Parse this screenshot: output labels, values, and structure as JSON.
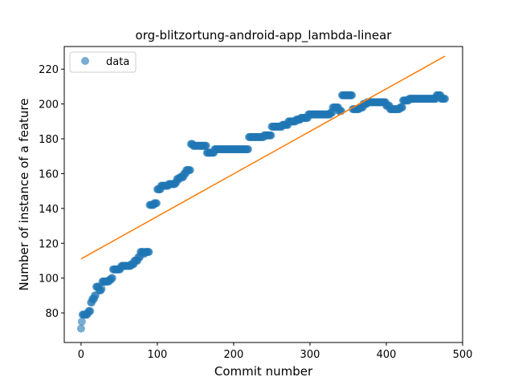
{
  "chart_data": {
    "type": "scatter",
    "title": "org-blitzortung-android-app_lambda-linear",
    "xlabel": "Commit number",
    "ylabel": "Number of instance of a feature",
    "xlim": [
      -22,
      500
    ],
    "ylim": [
      63,
      233
    ],
    "xticks": [
      0,
      100,
      200,
      300,
      400,
      500
    ],
    "yticks": [
      80,
      100,
      120,
      140,
      160,
      180,
      200,
      220
    ],
    "legend": {
      "entries": [
        "data"
      ],
      "placement": "top-left"
    },
    "colors": {
      "data": "#1f77b4",
      "fit": "#ff7f0e"
    },
    "series": [
      {
        "name": "data",
        "kind": "scatter",
        "steps": [
          [
            0,
            71
          ],
          [
            1,
            75
          ],
          [
            2,
            79
          ],
          [
            8,
            79
          ],
          [
            9,
            80
          ],
          [
            10,
            81
          ],
          [
            13,
            86
          ],
          [
            15,
            88
          ],
          [
            18,
            90
          ],
          [
            20,
            95
          ],
          [
            24,
            93
          ],
          [
            27,
            94
          ],
          [
            28,
            98
          ],
          [
            35,
            98
          ],
          [
            37,
            99
          ],
          [
            40,
            100
          ],
          [
            42,
            105
          ],
          [
            52,
            106
          ],
          [
            53,
            107
          ],
          [
            66,
            108
          ],
          [
            70,
            110
          ],
          [
            75,
            112
          ],
          [
            78,
            115
          ],
          [
            82,
            114
          ],
          [
            84,
            115
          ],
          [
            90,
            142
          ],
          [
            96,
            143
          ],
          [
            100,
            151
          ],
          [
            105,
            153
          ],
          [
            115,
            154
          ],
          [
            124,
            155
          ],
          [
            126,
            157
          ],
          [
            130,
            158
          ],
          [
            135,
            160
          ],
          [
            138,
            162
          ],
          [
            144,
            177
          ],
          [
            147,
            176
          ],
          [
            165,
            172
          ],
          [
            175,
            174
          ],
          [
            220,
            181
          ],
          [
            240,
            182
          ],
          [
            250,
            187
          ],
          [
            264,
            188
          ],
          [
            272,
            190
          ],
          [
            282,
            191
          ],
          [
            288,
            192
          ],
          [
            298,
            194
          ],
          [
            327,
            195
          ],
          [
            330,
            198
          ],
          [
            338,
            196
          ],
          [
            342,
            205
          ],
          [
            356,
            197
          ],
          [
            365,
            198
          ],
          [
            370,
            200
          ],
          [
            375,
            201
          ],
          [
            400,
            199
          ],
          [
            405,
            197
          ],
          [
            418,
            198
          ],
          [
            422,
            202
          ],
          [
            430,
            203
          ],
          [
            466,
            205
          ],
          [
            472,
            203
          ],
          [
            477,
            203
          ]
        ]
      },
      {
        "name": "",
        "kind": "line",
        "points": [
          [
            0,
            111
          ],
          [
            477,
            227.5
          ]
        ]
      }
    ]
  }
}
